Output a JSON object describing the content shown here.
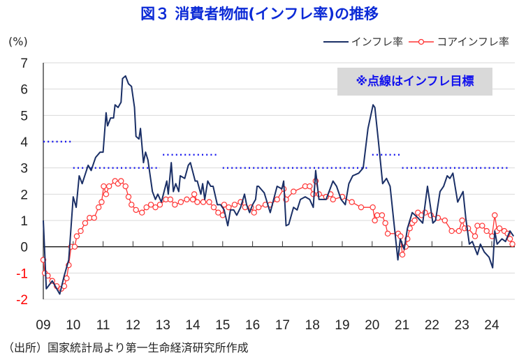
{
  "title": "図３ 消費者物価(インフレ率)の推移",
  "source": "（出所）国家統計局より第一生命経済研究所作成",
  "chart_data": {
    "type": "line",
    "title": "図３ 消費者物価(インフレ率)の推移",
    "ylabel": "(%)",
    "ylim": [
      -2,
      7
    ],
    "yticks": [
      "7",
      "6",
      "5",
      "4",
      "3",
      "2",
      "1",
      "0",
      "-1",
      "-2"
    ],
    "xlim": [
      2009,
      2024.75
    ],
    "xticks": [
      "09",
      "10",
      "11",
      "12",
      "13",
      "14",
      "15",
      "16",
      "17",
      "18",
      "19",
      "20",
      "21",
      "22",
      "23",
      "24"
    ],
    "grid": true,
    "legend": "top-right",
    "annotation": "※点線はインフレ目標",
    "colors": {
      "inflation": "#1a2f66",
      "core": "#ff3333",
      "target": "#1a1aee",
      "negative_ticks": "#ff0000"
    },
    "series": [
      {
        "name": "インフレ率",
        "points": [
          [
            2009.0,
            1.0
          ],
          [
            2009.1,
            -1.6
          ],
          [
            2009.3,
            -1.3
          ],
          [
            2009.5,
            -1.7
          ],
          [
            2009.55,
            -1.8
          ],
          [
            2009.7,
            -1.1
          ],
          [
            2009.85,
            -0.5
          ],
          [
            2010.0,
            1.9
          ],
          [
            2010.1,
            1.5
          ],
          [
            2010.2,
            2.7
          ],
          [
            2010.3,
            2.4
          ],
          [
            2010.5,
            3.1
          ],
          [
            2010.6,
            2.9
          ],
          [
            2010.75,
            3.4
          ],
          [
            2010.9,
            3.6
          ],
          [
            2011.0,
            3.6
          ],
          [
            2011.1,
            5.1
          ],
          [
            2011.15,
            4.6
          ],
          [
            2011.25,
            4.9
          ],
          [
            2011.35,
            4.9
          ],
          [
            2011.4,
            5.4
          ],
          [
            2011.5,
            5.3
          ],
          [
            2011.6,
            5.5
          ],
          [
            2011.65,
            6.4
          ],
          [
            2011.75,
            6.5
          ],
          [
            2011.85,
            6.2
          ],
          [
            2011.95,
            6.1
          ],
          [
            2012.05,
            5.3
          ],
          [
            2012.1,
            4.2
          ],
          [
            2012.2,
            4.1
          ],
          [
            2012.25,
            4.5
          ],
          [
            2012.35,
            3.2
          ],
          [
            2012.42,
            3.6
          ],
          [
            2012.5,
            3.3
          ],
          [
            2012.65,
            2.1
          ],
          [
            2012.75,
            1.8
          ],
          [
            2012.83,
            2.0
          ],
          [
            2012.95,
            1.7
          ],
          [
            2013.13,
            2.5
          ],
          [
            2013.18,
            2.0
          ],
          [
            2013.28,
            3.2
          ],
          [
            2013.35,
            2.1
          ],
          [
            2013.43,
            2.4
          ],
          [
            2013.53,
            2.1
          ],
          [
            2013.58,
            2.7
          ],
          [
            2013.73,
            2.6
          ],
          [
            2013.85,
            3.1
          ],
          [
            2013.92,
            3.2
          ],
          [
            2014.08,
            2.5
          ],
          [
            2014.15,
            2.5
          ],
          [
            2014.27,
            2.0
          ],
          [
            2014.33,
            2.4
          ],
          [
            2014.4,
            1.8
          ],
          [
            2014.5,
            2.5
          ],
          [
            2014.6,
            2.3
          ],
          [
            2014.68,
            2.3
          ],
          [
            2014.82,
            1.6
          ],
          [
            2014.93,
            1.6
          ],
          [
            2015.05,
            1.4
          ],
          [
            2015.17,
            0.8
          ],
          [
            2015.26,
            1.4
          ],
          [
            2015.37,
            1.4
          ],
          [
            2015.47,
            1.2
          ],
          [
            2015.6,
            1.5
          ],
          [
            2015.73,
            2.0
          ],
          [
            2015.8,
            1.6
          ],
          [
            2015.9,
            1.3
          ],
          [
            2016.0,
            1.6
          ],
          [
            2016.1,
            1.8
          ],
          [
            2016.15,
            2.3
          ],
          [
            2016.2,
            2.3
          ],
          [
            2016.39,
            2.05
          ],
          [
            2016.59,
            1.3
          ],
          [
            2016.82,
            2.3
          ],
          [
            2016.98,
            2.2
          ],
          [
            2017.04,
            2.5
          ],
          [
            2017.12,
            0.8
          ],
          [
            2017.21,
            0.85
          ],
          [
            2017.37,
            1.5
          ],
          [
            2017.49,
            1.4
          ],
          [
            2017.6,
            1.8
          ],
          [
            2017.76,
            1.9
          ],
          [
            2017.91,
            1.8
          ],
          [
            2018.03,
            1.5
          ],
          [
            2018.11,
            2.9
          ],
          [
            2018.22,
            1.8
          ],
          [
            2018.46,
            1.8
          ],
          [
            2018.69,
            2.5
          ],
          [
            2018.81,
            2.3
          ],
          [
            2018.96,
            1.8
          ],
          [
            2019.1,
            1.6
          ],
          [
            2019.22,
            2.4
          ],
          [
            2019.35,
            2.7
          ],
          [
            2019.55,
            2.8
          ],
          [
            2019.7,
            3.0
          ],
          [
            2019.86,
            4.5
          ],
          [
            2020.03,
            5.4
          ],
          [
            2020.09,
            5.3
          ],
          [
            2020.21,
            4.0
          ],
          [
            2020.35,
            2.4
          ],
          [
            2020.48,
            2.6
          ],
          [
            2020.6,
            2.3
          ],
          [
            2020.72,
            1.0
          ],
          [
            2020.86,
            -0.5
          ],
          [
            2020.94,
            0.3
          ],
          [
            2021.07,
            -0.1
          ],
          [
            2021.18,
            0.7
          ],
          [
            2021.34,
            1.3
          ],
          [
            2021.53,
            1.1
          ],
          [
            2021.69,
            0.9
          ],
          [
            2021.85,
            2.3
          ],
          [
            2022.03,
            0.9
          ],
          [
            2022.12,
            1.0
          ],
          [
            2022.27,
            2.1
          ],
          [
            2022.39,
            2.3
          ],
          [
            2022.51,
            2.7
          ],
          [
            2022.6,
            2.6
          ],
          [
            2022.7,
            2.8
          ],
          [
            2022.86,
            1.7
          ],
          [
            2023.04,
            2.1
          ],
          [
            2023.13,
            1.1
          ],
          [
            2023.25,
            0.1
          ],
          [
            2023.35,
            0.2
          ],
          [
            2023.52,
            -0.3
          ],
          [
            2023.62,
            0.1
          ],
          [
            2023.75,
            -0.2
          ],
          [
            2023.91,
            -0.4
          ],
          [
            2024.03,
            -0.8
          ],
          [
            2024.1,
            0.6
          ],
          [
            2024.18,
            0.1
          ],
          [
            2024.34,
            0.3
          ],
          [
            2024.46,
            0.2
          ],
          [
            2024.61,
            0.6
          ],
          [
            2024.73,
            0.4
          ]
        ]
      },
      {
        "name": "コアインフレ率",
        "points": [
          [
            2009.0,
            -0.5
          ],
          [
            2009.05,
            -1.0
          ],
          [
            2009.15,
            -1.1
          ],
          [
            2009.3,
            -1.3
          ],
          [
            2009.45,
            -1.5
          ],
          [
            2009.6,
            -1.6
          ],
          [
            2009.7,
            -1.5
          ],
          [
            2009.78,
            -1.2
          ],
          [
            2009.85,
            -0.7
          ],
          [
            2009.93,
            0.0
          ],
          [
            2010.05,
            0.0
          ],
          [
            2010.12,
            0.4
          ],
          [
            2010.25,
            0.6
          ],
          [
            2010.4,
            0.9
          ],
          [
            2010.55,
            1.1
          ],
          [
            2010.7,
            1.1
          ],
          [
            2010.85,
            1.5
          ],
          [
            2010.95,
            1.7
          ],
          [
            2011.02,
            2.3
          ],
          [
            2011.1,
            2.0
          ],
          [
            2011.2,
            2.3
          ],
          [
            2011.4,
            2.5
          ],
          [
            2011.5,
            2.4
          ],
          [
            2011.6,
            2.5
          ],
          [
            2011.75,
            2.3
          ],
          [
            2011.85,
            1.9
          ],
          [
            2011.95,
            1.6
          ],
          [
            2012.1,
            1.4
          ],
          [
            2012.3,
            1.3
          ],
          [
            2012.45,
            1.5
          ],
          [
            2012.6,
            1.6
          ],
          [
            2012.75,
            1.5
          ],
          [
            2012.9,
            1.6
          ],
          [
            2013.1,
            1.8
          ],
          [
            2013.25,
            1.8
          ],
          [
            2013.4,
            1.6
          ],
          [
            2013.6,
            1.7
          ],
          [
            2013.8,
            1.8
          ],
          [
            2014.0,
            1.8
          ],
          [
            2014.05,
            2.0
          ],
          [
            2014.15,
            1.7
          ],
          [
            2014.35,
            1.7
          ],
          [
            2014.55,
            1.7
          ],
          [
            2014.7,
            1.5
          ],
          [
            2014.85,
            1.3
          ],
          [
            2015.0,
            1.2
          ],
          [
            2015.05,
            1.6
          ],
          [
            2015.2,
            1.5
          ],
          [
            2015.4,
            1.6
          ],
          [
            2015.6,
            1.7
          ],
          [
            2015.75,
            1.5
          ],
          [
            2015.95,
            1.5
          ],
          [
            2016.05,
            1.3
          ],
          [
            2016.2,
            1.5
          ],
          [
            2016.43,
            1.6
          ],
          [
            2016.59,
            1.6
          ],
          [
            2016.82,
            1.8
          ],
          [
            2017.04,
            2.2
          ],
          [
            2017.12,
            1.8
          ],
          [
            2017.37,
            2.1
          ],
          [
            2017.76,
            2.3
          ],
          [
            2017.91,
            2.3
          ],
          [
            2018.03,
            2.0
          ],
          [
            2018.11,
            2.5
          ],
          [
            2018.22,
            2.0
          ],
          [
            2018.46,
            1.9
          ],
          [
            2018.61,
            2.0
          ],
          [
            2018.69,
            1.8
          ],
          [
            2019.0,
            1.9
          ],
          [
            2019.32,
            1.7
          ],
          [
            2019.63,
            1.5
          ],
          [
            2020.02,
            1.5
          ],
          [
            2020.09,
            1.0
          ],
          [
            2020.17,
            1.2
          ],
          [
            2020.33,
            1.2
          ],
          [
            2020.44,
            0.9
          ],
          [
            2020.52,
            0.5
          ],
          [
            2020.87,
            0.5
          ],
          [
            2020.95,
            0.4
          ],
          [
            2021.01,
            -0.3
          ],
          [
            2021.12,
            0.0
          ],
          [
            2021.18,
            0.3
          ],
          [
            2021.26,
            0.7
          ],
          [
            2021.34,
            0.9
          ],
          [
            2021.42,
            1.0
          ],
          [
            2021.53,
            1.3
          ],
          [
            2021.65,
            1.2
          ],
          [
            2021.77,
            1.3
          ],
          [
            2021.96,
            1.2
          ],
          [
            2022.2,
            1.1
          ],
          [
            2022.43,
            1.0
          ],
          [
            2022.66,
            0.6
          ],
          [
            2022.9,
            0.6
          ],
          [
            2023.01,
            1.0
          ],
          [
            2023.09,
            0.7
          ],
          [
            2023.21,
            0.7
          ],
          [
            2023.44,
            0.4
          ],
          [
            2023.52,
            0.8
          ],
          [
            2023.68,
            0.8
          ],
          [
            2023.83,
            0.6
          ],
          [
            2024.01,
            0.4
          ],
          [
            2024.1,
            1.2
          ],
          [
            2024.18,
            0.6
          ],
          [
            2024.26,
            0.7
          ],
          [
            2024.42,
            0.6
          ],
          [
            2024.53,
            0.5
          ],
          [
            2024.61,
            0.3
          ],
          [
            2024.69,
            0.1
          ]
        ]
      }
    ],
    "targets": [
      {
        "from": 2009.0,
        "to": 2009.95,
        "value": 4
      },
      {
        "from": 2010.0,
        "to": 2012.9,
        "value": 3
      },
      {
        "from": 2013.0,
        "to": 2014.85,
        "value": 3.5
      },
      {
        "from": 2015.0,
        "to": 2019.9,
        "value": 3
      },
      {
        "from": 2020.0,
        "to": 2020.93,
        "value": 3.5
      },
      {
        "from": 2021.0,
        "to": 2024.6,
        "value": 3
      }
    ]
  }
}
